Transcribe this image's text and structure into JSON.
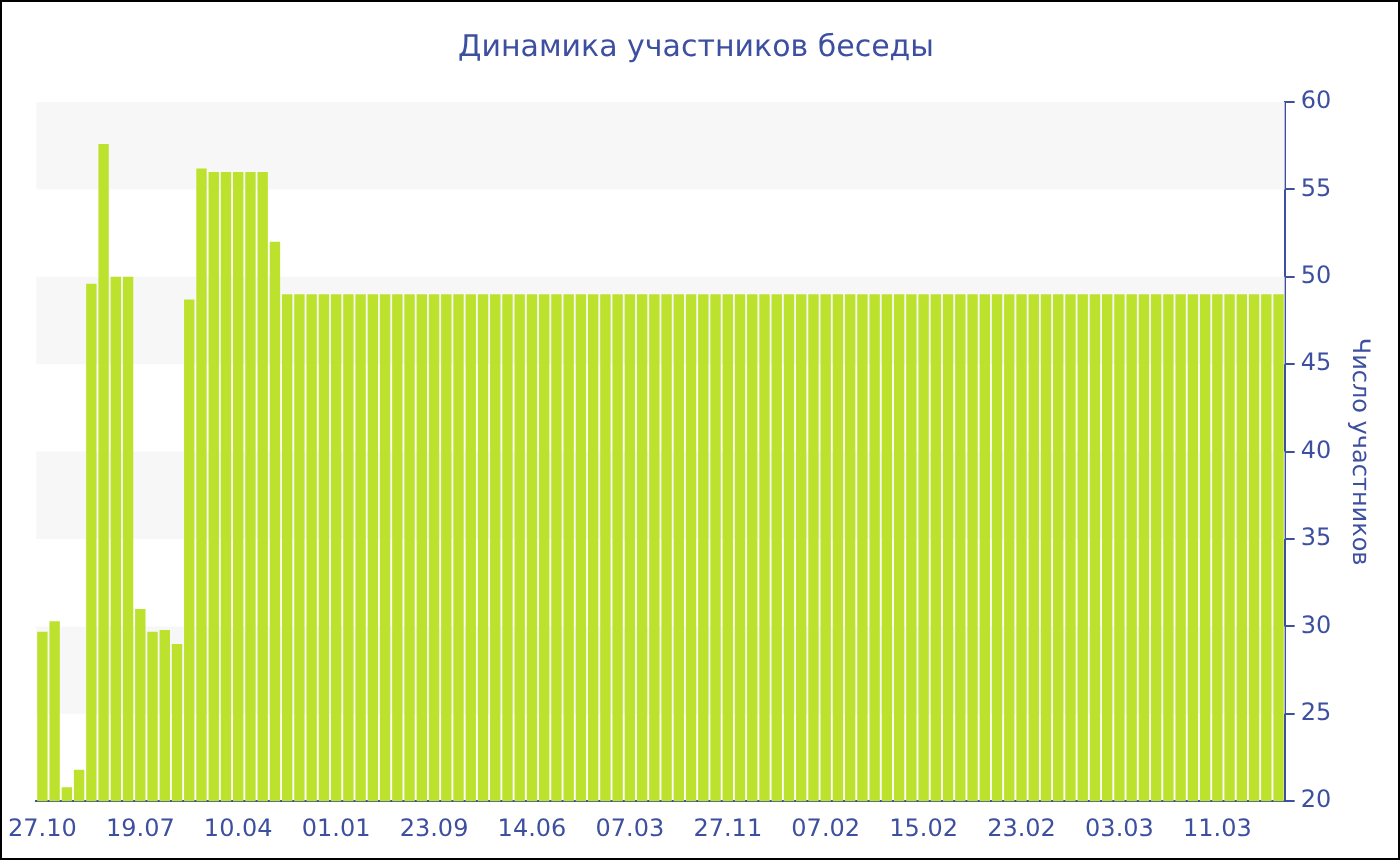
{
  "chart_data": {
    "type": "bar",
    "title": "Динамика участников беседы",
    "ylabel": "Число участников",
    "categories": [
      "27.10",
      null,
      null,
      null,
      null,
      null,
      null,
      null,
      "19.07",
      null,
      null,
      null,
      null,
      null,
      null,
      null,
      "10.04",
      null,
      null,
      null,
      null,
      null,
      null,
      null,
      "01.01",
      null,
      null,
      null,
      null,
      null,
      null,
      null,
      "23.09",
      null,
      null,
      null,
      null,
      null,
      null,
      null,
      "14.06",
      null,
      null,
      null,
      null,
      null,
      null,
      null,
      "07.03",
      null,
      null,
      null,
      null,
      null,
      null,
      null,
      "27.11",
      null,
      null,
      null,
      null,
      null,
      null,
      null,
      "07.02",
      null,
      null,
      null,
      null,
      null,
      null,
      null,
      "15.02",
      null,
      null,
      null,
      null,
      null,
      null,
      null,
      "23.02",
      null,
      null,
      null,
      null,
      null,
      null,
      null,
      "03.03",
      null,
      null,
      null,
      null,
      null,
      null,
      null,
      "11.03",
      null,
      null,
      null,
      null,
      null
    ],
    "series": [
      {
        "color": "#bde22e",
        "values": [
          29.7,
          30.3,
          20.8,
          21.8,
          49.6,
          57.6,
          50,
          50,
          31,
          29.7,
          29.8,
          29,
          48.7,
          56.2,
          56,
          56,
          56,
          56,
          56,
          52,
          49,
          49,
          49,
          49,
          49,
          49,
          49,
          49,
          49,
          49,
          49,
          49,
          49,
          49,
          49,
          49,
          49,
          49,
          49,
          49,
          49,
          49,
          49,
          49,
          49,
          49,
          49,
          49,
          49,
          49,
          49,
          49,
          49,
          49,
          49,
          49,
          49,
          49,
          49,
          49,
          49,
          49,
          49,
          49,
          49,
          49,
          49,
          49,
          49,
          49,
          49,
          49,
          49,
          49,
          49,
          49,
          49,
          49,
          49,
          49,
          49,
          49,
          49,
          49,
          49,
          49,
          49,
          49,
          49,
          49,
          49,
          49,
          49,
          49,
          49,
          49,
          49,
          49,
          49,
          49,
          49,
          49
        ]
      }
    ],
    "ylim": [
      20,
      60
    ],
    "yticks": [
      20,
      25,
      30,
      35,
      40,
      45,
      50,
      55,
      60
    ],
    "bands": [
      {
        "axis": "y",
        "from": 25,
        "to": 30,
        "color": "#f7f7f7"
      },
      {
        "axis": "y",
        "from": 35,
        "to": 40,
        "color": "#f7f7f7"
      },
      {
        "axis": "y",
        "from": 45,
        "to": 50,
        "color": "#f7f7f7"
      },
      {
        "axis": "y",
        "from": 55,
        "to": 60,
        "color": "#f7f7f7"
      }
    ],
    "legend": false
  }
}
